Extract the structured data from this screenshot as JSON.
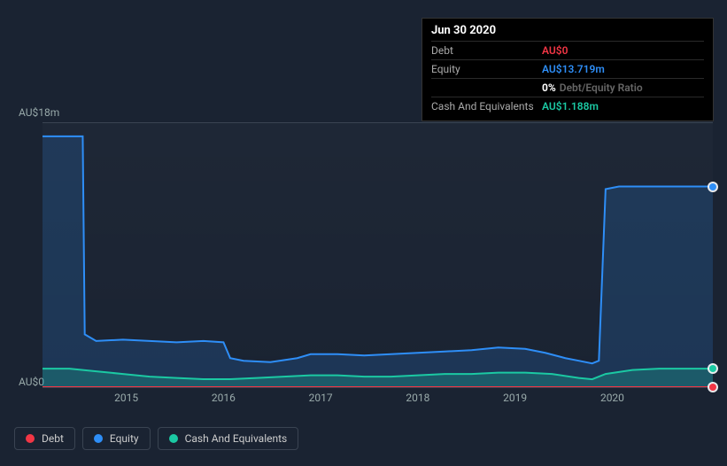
{
  "tooltip": {
    "date": "Jun 30 2020",
    "rows": [
      {
        "label": "Debt",
        "value": "AU$0",
        "color": "#f23645"
      },
      {
        "label": "Equity",
        "value": "AU$13.719m",
        "color": "#2e8ef7"
      },
      {
        "label": "",
        "pct": "0%",
        "suffix": "Debt/Equity Ratio",
        "color": "#ffffff"
      },
      {
        "label": "Cash And Equivalents",
        "value": "AU$1.188m",
        "color": "#1bc9a3"
      }
    ]
  },
  "chart": {
    "y_top_label": "AU$18m",
    "y_bottom_label": "AU$0",
    "y_max": 18,
    "y_min": 0,
    "x_labels": [
      "2015",
      "2016",
      "2017",
      "2018",
      "2019",
      "2020"
    ],
    "x_label_positions_pct": [
      12.5,
      27.0,
      41.5,
      56.0,
      70.5,
      85.0
    ],
    "background_color": "#1a2332",
    "grid_color": "#3a4452",
    "series": [
      {
        "name": "Equity",
        "color": "#2e8ef7",
        "fill": "rgba(46,142,247,0.18)",
        "width": 2,
        "points_pct": [
          [
            0,
            5
          ],
          [
            4,
            5
          ],
          [
            6,
            5
          ],
          [
            6.3,
            80
          ],
          [
            8,
            82.5
          ],
          [
            12,
            82
          ],
          [
            16,
            82.5
          ],
          [
            20,
            83
          ],
          [
            24,
            82.5
          ],
          [
            27,
            83
          ],
          [
            28,
            89
          ],
          [
            30,
            90
          ],
          [
            34,
            90.5
          ],
          [
            38,
            89
          ],
          [
            40,
            87.5
          ],
          [
            44,
            87.5
          ],
          [
            48,
            88
          ],
          [
            52,
            87.5
          ],
          [
            56,
            87
          ],
          [
            60,
            86.5
          ],
          [
            64,
            86
          ],
          [
            68,
            85
          ],
          [
            72,
            85.5
          ],
          [
            75,
            87
          ],
          [
            78,
            89
          ],
          [
            80,
            90
          ],
          [
            82,
            91
          ],
          [
            83,
            90
          ],
          [
            84,
            25
          ],
          [
            86,
            24
          ],
          [
            90,
            24
          ],
          [
            95,
            24
          ],
          [
            100,
            24
          ]
        ],
        "end_marker": true
      },
      {
        "name": "Cash And Equivalents",
        "color": "#1bc9a3",
        "fill": "rgba(27,201,163,0.25)",
        "width": 2,
        "points_pct": [
          [
            0,
            93
          ],
          [
            4,
            93
          ],
          [
            8,
            94
          ],
          [
            12,
            95
          ],
          [
            16,
            96
          ],
          [
            20,
            96.5
          ],
          [
            24,
            97
          ],
          [
            28,
            97
          ],
          [
            32,
            96.5
          ],
          [
            36,
            96
          ],
          [
            40,
            95.5
          ],
          [
            44,
            95.5
          ],
          [
            48,
            96
          ],
          [
            52,
            96
          ],
          [
            56,
            95.5
          ],
          [
            60,
            95
          ],
          [
            64,
            95
          ],
          [
            68,
            94.5
          ],
          [
            72,
            94.5
          ],
          [
            76,
            95
          ],
          [
            80,
            96.5
          ],
          [
            82,
            97
          ],
          [
            84,
            95
          ],
          [
            88,
            93.5
          ],
          [
            92,
            93
          ],
          [
            96,
            93
          ],
          [
            100,
            93
          ]
        ],
        "end_marker": true
      },
      {
        "name": "Debt",
        "color": "#f23645",
        "fill": "rgba(242,54,69,0.15)",
        "width": 2,
        "points_pct": [
          [
            0,
            100
          ],
          [
            100,
            100
          ]
        ],
        "end_marker": true
      }
    ]
  },
  "legend": [
    {
      "label": "Debt",
      "color": "#f23645"
    },
    {
      "label": "Equity",
      "color": "#2e8ef7"
    },
    {
      "label": "Cash And Equivalents",
      "color": "#1bc9a3"
    }
  ]
}
